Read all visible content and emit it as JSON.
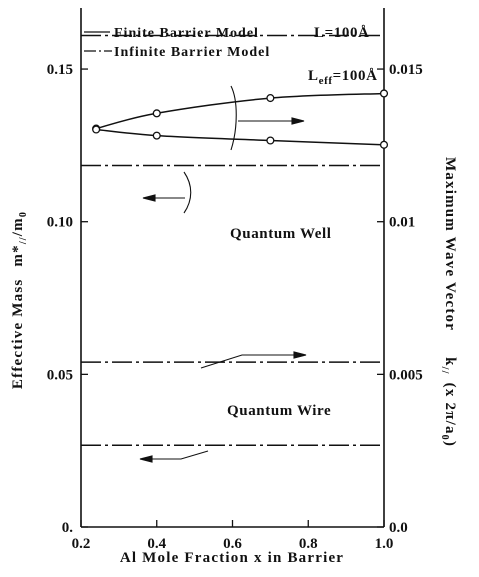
{
  "chart_data": {
    "type": "line",
    "xlabel": "Al Mole Fraction x in Barrier",
    "ylabel_left": "Effective Mass m*//m0",
    "ylabel_left_parts": {
      "main": "Effective Mass",
      "sym": "m*",
      "sub": "//",
      "den": "m",
      "den_sub": "0"
    },
    "ylabel_right": "Maximum Wave Vector k// (x 2π/a0)",
    "ylabel_right_parts": {
      "main": "Maximum Wave Vector",
      "sym": "k",
      "sub": "//",
      "paren": "(x 2π/a",
      "paren_sub": "0",
      "paren_close": ")"
    },
    "xlim": [
      0.2,
      1.0
    ],
    "ylim_left": [
      0.0,
      0.17
    ],
    "ylim_right": [
      0.0,
      0.017
    ],
    "x_ticks": [
      "0.2",
      "0.4",
      "0.6",
      "0.8",
      "1.0"
    ],
    "x_tick_values": [
      0.2,
      0.4,
      0.6,
      0.8,
      1.0
    ],
    "y_left_ticks": [
      "0.",
      "0.05",
      "0.10",
      "0.15"
    ],
    "y_left_tick_values": [
      0.0,
      0.05,
      0.1,
      0.15
    ],
    "y_right_ticks": [
      "0.0",
      "0.005",
      "0.01",
      "0.015"
    ],
    "y_right_tick_values": [
      0.0,
      0.005,
      0.01,
      0.015
    ],
    "legend": [
      {
        "label": "Finite Barrier Model",
        "style": "solid"
      },
      {
        "label": "Infinite Barrier Model",
        "style": "dashdot"
      }
    ],
    "annotations": {
      "L": "L=100Å",
      "Leff_main": "L",
      "Leff_sub": "eff",
      "Leff_rest": "=100Å",
      "quantum_well": "Quantum Well",
      "quantum_wire": "Quantum Wire"
    },
    "series": [
      {
        "axis": "right",
        "style": "solid",
        "markers": "circle",
        "x": [
          0.24,
          0.4,
          0.7,
          1.0
        ],
        "y": [
          0.01305,
          0.01355,
          0.01405,
          0.0142
        ]
      },
      {
        "axis": "left",
        "style": "solid",
        "markers": "circle",
        "x": [
          0.24,
          0.4,
          0.7,
          1.0
        ],
        "y": [
          0.1302,
          0.1282,
          0.1266,
          0.1252
        ]
      },
      {
        "axis": "right",
        "style": "dashdot",
        "x": [
          0.2,
          1.0
        ],
        "y": [
          0.0161,
          0.0161
        ]
      },
      {
        "axis": "left",
        "style": "dashdot",
        "x": [
          0.2,
          1.0
        ],
        "y": [
          0.1184,
          0.1184
        ]
      },
      {
        "axis": "right",
        "style": "dashdot",
        "x": [
          0.2,
          1.0
        ],
        "y": [
          0.0054,
          0.0054
        ]
      },
      {
        "axis": "left",
        "style": "dashdot",
        "x": [
          0.2,
          1.0
        ],
        "y": [
          0.0268,
          0.0268
        ]
      }
    ]
  }
}
